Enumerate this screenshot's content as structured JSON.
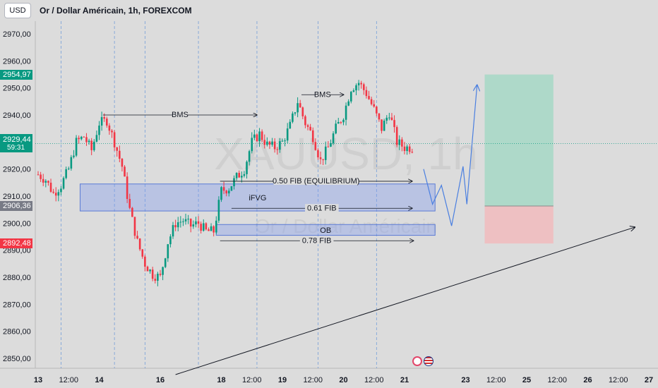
{
  "header": {
    "currency_button": "USD",
    "title": "Or / Dollar Américain, 1h, FOREXCOM"
  },
  "watermark": {
    "symbol": "XAUUSD",
    "interval": "1h",
    "name": "Or / Dollar Américain"
  },
  "price_badges": {
    "tp": {
      "label": "2954,97",
      "value": 2954.97,
      "color": "#089981"
    },
    "last": {
      "label": "2929,44",
      "countdown": "59:31",
      "value": 2929.44,
      "color": "#089981"
    },
    "entry": {
      "label": "2906,36",
      "value": 2906.36,
      "color": "#787b86"
    },
    "sl": {
      "label": "2892,48",
      "value": 2892.48,
      "color": "#f23645"
    }
  },
  "chart_data": {
    "type": "candlestick",
    "symbol": "XAUUSD",
    "timeframe": "1h",
    "y_axis": {
      "ylim": [
        2845,
        2975
      ],
      "ticks": [
        2970,
        2960,
        2950,
        2940,
        2930,
        2920,
        2910,
        2900,
        2890,
        2880,
        2870,
        2860,
        2850
      ],
      "tick_labels": [
        "2970,00",
        "2960,00",
        "2950,00",
        "2940,00",
        "2930,00",
        "2920,00",
        "2910,00",
        "2900,00",
        "2890,00",
        "2880,00",
        "2870,00",
        "2860,00",
        "2850,00"
      ]
    },
    "x_axis": {
      "ticks": [
        {
          "label": "13",
          "t": 0
        },
        {
          "label": "12:00",
          "t": 12
        },
        {
          "label": "14",
          "t": 24
        },
        {
          "label": "16",
          "t": 48
        },
        {
          "label": "18",
          "t": 72
        },
        {
          "label": "12:00",
          "t": 84
        },
        {
          "label": "19",
          "t": 96
        },
        {
          "label": "12:00",
          "t": 108
        },
        {
          "label": "20",
          "t": 120
        },
        {
          "label": "12:00",
          "t": 132
        },
        {
          "label": "21",
          "t": 144
        },
        {
          "label": "23",
          "t": 168
        },
        {
          "label": "12:00",
          "t": 180
        },
        {
          "label": "25",
          "t": 192
        },
        {
          "label": "12:00",
          "t": 204
        },
        {
          "label": "26",
          "t": 216
        },
        {
          "label": "12:00",
          "t": 228
        },
        {
          "label": "27",
          "t": 240
        }
      ],
      "session_lines_t": [
        9,
        30,
        42,
        63,
        86,
        110,
        133
      ]
    },
    "price_path": [
      [
        0,
        2918
      ],
      [
        3,
        2916
      ],
      [
        6,
        2911
      ],
      [
        9,
        2914
      ],
      [
        12,
        2920
      ],
      [
        15,
        2930
      ],
      [
        18,
        2932
      ],
      [
        21,
        2927
      ],
      [
        24,
        2937
      ],
      [
        27,
        2938
      ],
      [
        30,
        2930
      ],
      [
        33,
        2921
      ],
      [
        36,
        2905
      ],
      [
        39,
        2893
      ],
      [
        42,
        2885
      ],
      [
        45,
        2881
      ],
      [
        48,
        2880
      ],
      [
        51,
        2893
      ],
      [
        54,
        2900
      ],
      [
        57,
        2901
      ],
      [
        60,
        2899
      ],
      [
        63,
        2900
      ],
      [
        66,
        2897
      ],
      [
        69,
        2897
      ],
      [
        72,
        2912
      ],
      [
        75,
        2913
      ],
      [
        78,
        2917
      ],
      [
        81,
        2920
      ],
      [
        84,
        2930
      ],
      [
        87,
        2933
      ],
      [
        90,
        2929
      ],
      [
        93,
        2928
      ],
      [
        96,
        2930
      ],
      [
        99,
        2936
      ],
      [
        102,
        2945
      ],
      [
        105,
        2937
      ],
      [
        108,
        2932
      ],
      [
        111,
        2923
      ],
      [
        114,
        2928
      ],
      [
        117,
        2935
      ],
      [
        120,
        2940
      ],
      [
        123,
        2950
      ],
      [
        126,
        2952
      ],
      [
        129,
        2948
      ],
      [
        132,
        2942
      ],
      [
        135,
        2935
      ],
      [
        138,
        2941
      ],
      [
        141,
        2930
      ],
      [
        144,
        2928
      ],
      [
        147,
        2928
      ]
    ],
    "zones": [
      {
        "label": "iFVG",
        "y1": 2904.5,
        "y2": 2914.5,
        "t1": 16.5,
        "t2": 156.0
      },
      {
        "label": "OB",
        "y1": 2895.5,
        "y2": 2899.5,
        "t1": 70.0,
        "t2": 156.0
      }
    ],
    "levels": [
      {
        "label": "BMS",
        "price": 2940.0,
        "t1": 25.5,
        "t2": 86.0
      },
      {
        "label": "BMS",
        "price": 2947.5,
        "t1": 103.5,
        "t2": 120.0
      },
      {
        "label": "0.50 FIB (EQUILIBRIUM)",
        "price": 2915.5,
        "t1": 71.5,
        "t2": 147.0
      },
      {
        "label": "0.61 FIB",
        "price": 2905.5,
        "t1": 76.0,
        "t2": 147.0
      },
      {
        "label": "0.78 FIB",
        "price": 2893.5,
        "t1": 71.5,
        "t2": 147.5
      }
    ],
    "position": {
      "t1": 175.5,
      "t2": 202.5,
      "tp": 2954.97,
      "entry": 2906.36,
      "sl": 2892.48
    },
    "projection": [
      [
        151.5,
        2920
      ],
      [
        155.0,
        2907
      ],
      [
        158.5,
        2914
      ],
      [
        162.5,
        2899
      ],
      [
        167.0,
        2921
      ],
      [
        168.5,
        2907
      ],
      [
        172.5,
        2951
      ]
    ],
    "trendline": {
      "from": [
        54.0,
        2844.0
      ],
      "to": [
        234.5,
        2898.5
      ]
    },
    "last_price_line": 2929.44
  },
  "colors": {
    "up": "#089981",
    "down": "#f23645",
    "zone_fill": "rgba(120,150,240,0.35)",
    "zone_stroke": "#5b7bd5",
    "projection": "#4a7fe0",
    "tp_fill": "#a9d8c7",
    "sl_fill": "#f0bcbf",
    "grid_session": "#5b8fd9"
  }
}
